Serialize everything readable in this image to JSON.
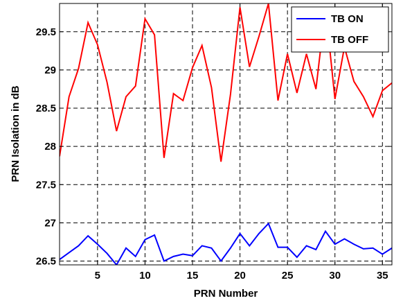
{
  "chart_data": {
    "type": "line",
    "title": "",
    "xlabel": "PRN Number",
    "ylabel": "PRN Isolation in dB",
    "xlim": [
      1,
      36
    ],
    "ylim": [
      26.45,
      29.87
    ],
    "xticks": [
      5,
      10,
      15,
      20,
      25,
      30,
      35
    ],
    "yticks": [
      26.5,
      27,
      27.5,
      28,
      28.5,
      29,
      29.5
    ],
    "ytick_labels": [
      "26.5",
      "27",
      "27.5",
      "28",
      "28.5",
      "29",
      "29.5"
    ],
    "grid": true,
    "grid_style": "dashed",
    "legend_position": "top-right",
    "x": [
      1,
      2,
      3,
      4,
      5,
      6,
      7,
      8,
      9,
      10,
      11,
      12,
      13,
      14,
      15,
      16,
      17,
      18,
      19,
      20,
      21,
      22,
      23,
      24,
      25,
      26,
      27,
      28,
      29,
      30,
      31,
      32,
      33,
      34,
      35,
      36
    ],
    "series": [
      {
        "name": "TB ON",
        "color": "#0000ff",
        "values": [
          26.52,
          26.61,
          26.7,
          26.83,
          26.72,
          26.6,
          26.45,
          26.67,
          26.56,
          26.78,
          26.84,
          26.5,
          26.56,
          26.59,
          26.57,
          26.7,
          26.67,
          26.5,
          26.67,
          26.86,
          26.7,
          26.86,
          26.99,
          26.68,
          26.68,
          26.55,
          26.7,
          26.65,
          26.89,
          26.72,
          26.79,
          26.72,
          26.66,
          26.67,
          26.59,
          26.67
        ]
      },
      {
        "name": "TB OFF",
        "color": "#ff0000",
        "values": [
          27.87,
          28.65,
          29.02,
          29.62,
          29.33,
          28.84,
          28.2,
          28.65,
          28.79,
          29.67,
          29.46,
          27.85,
          28.69,
          28.6,
          29.03,
          29.32,
          28.77,
          27.8,
          28.68,
          29.82,
          29.04,
          29.44,
          29.87,
          28.6,
          29.21,
          28.7,
          29.21,
          28.75,
          29.82,
          28.62,
          29.3,
          28.85,
          28.65,
          28.39,
          28.73,
          28.83
        ]
      }
    ]
  }
}
